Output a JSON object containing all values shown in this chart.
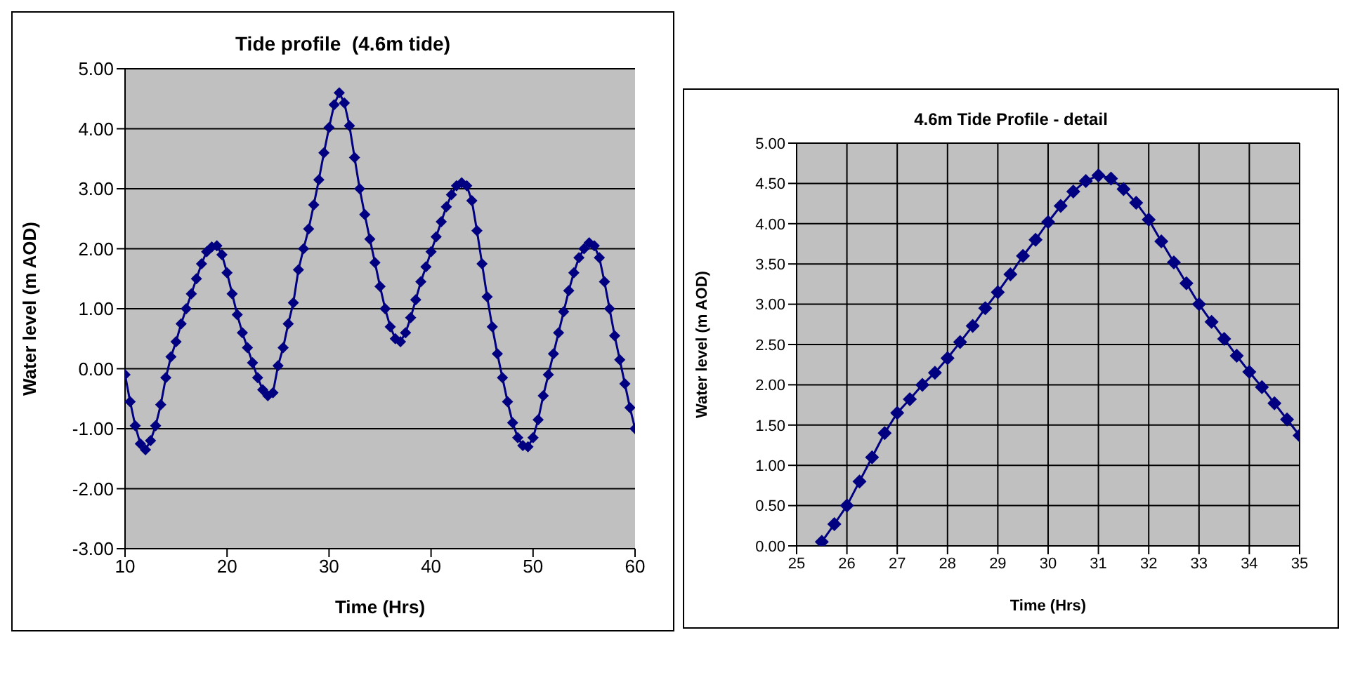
{
  "chart_data": [
    {
      "type": "line",
      "title": "Tide profile  (4.6m tide)",
      "xlabel": "Time (Hrs)",
      "ylabel": "Water level (m AOD)",
      "xlim": [
        10,
        60
      ],
      "xticks": [
        10,
        20,
        30,
        40,
        50,
        60
      ],
      "ylim": [
        -3,
        5
      ],
      "yticks": [
        {
          "value": -3,
          "label": "-3.00"
        },
        {
          "value": -2,
          "label": "-2.00"
        },
        {
          "value": -1,
          "label": "-1.00"
        },
        {
          "value": 0,
          "label": "0.00"
        },
        {
          "value": 1,
          "label": "1.00"
        },
        {
          "value": 2,
          "label": "2.00"
        },
        {
          "value": 3,
          "label": "3.00"
        },
        {
          "value": 4,
          "label": "4.00"
        },
        {
          "value": 5,
          "label": "5.00"
        }
      ],
      "grid": "y",
      "marker": "diamond",
      "x": [
        10,
        10.5,
        11,
        11.5,
        12,
        12.5,
        13,
        13.5,
        14,
        14.5,
        15,
        15.5,
        16,
        16.5,
        17,
        17.5,
        18,
        18.5,
        19,
        19.5,
        20,
        20.5,
        21,
        21.5,
        22,
        22.5,
        23,
        23.5,
        24,
        24.5,
        25,
        25.5,
        26,
        26.5,
        27,
        27.5,
        28,
        28.5,
        29,
        29.5,
        30,
        30.5,
        31,
        31.5,
        32,
        32.5,
        33,
        33.5,
        34,
        34.5,
        35,
        35.5,
        36,
        36.5,
        37,
        37.5,
        38,
        38.5,
        39,
        39.5,
        40,
        40.5,
        41,
        41.5,
        42,
        42.5,
        43,
        43.5,
        44,
        44.5,
        45,
        45.5,
        46,
        46.5,
        47,
        47.5,
        48,
        48.5,
        49,
        49.5,
        50,
        50.5,
        51,
        51.5,
        52,
        52.5,
        53,
        53.5,
        54,
        54.5,
        55,
        55.5,
        56,
        56.5,
        57,
        57.5,
        58,
        58.5,
        59,
        59.5,
        60
      ],
      "series": [
        {
          "color": "#000080",
          "values": [
            -0.1,
            -0.55,
            -0.95,
            -1.25,
            -1.35,
            -1.2,
            -0.95,
            -0.6,
            -0.15,
            0.2,
            0.45,
            0.75,
            1.0,
            1.25,
            1.5,
            1.75,
            1.95,
            2.03,
            2.05,
            1.9,
            1.6,
            1.25,
            0.9,
            0.6,
            0.35,
            0.1,
            -0.15,
            -0.35,
            -0.45,
            -0.4,
            0.05,
            0.35,
            0.75,
            1.1,
            1.65,
            2.0,
            2.33,
            2.73,
            3.15,
            3.6,
            4.02,
            4.4,
            4.6,
            4.43,
            4.05,
            3.52,
            3.0,
            2.57,
            2.16,
            1.77,
            1.37,
            1.0,
            0.7,
            0.5,
            0.45,
            0.6,
            0.85,
            1.15,
            1.45,
            1.7,
            1.95,
            2.2,
            2.45,
            2.7,
            2.9,
            3.05,
            3.1,
            3.05,
            2.8,
            2.3,
            1.75,
            1.2,
            0.7,
            0.25,
            -0.15,
            -0.55,
            -0.9,
            -1.15,
            -1.28,
            -1.3,
            -1.15,
            -0.85,
            -0.45,
            -0.1,
            0.25,
            0.6,
            0.95,
            1.3,
            1.6,
            1.85,
            2.0,
            2.1,
            2.05,
            1.85,
            1.45,
            1.0,
            0.55,
            0.15,
            -0.25,
            -0.65,
            -1.0
          ]
        }
      ]
    },
    {
      "type": "line",
      "title": "4.6m Tide Profile - detail",
      "xlabel": "Time (Hrs)",
      "ylabel": "Water level (m AOD)",
      "xlim": [
        25,
        35
      ],
      "xticks": [
        25,
        26,
        27,
        28,
        29,
        30,
        31,
        32,
        33,
        34,
        35
      ],
      "ylim": [
        0,
        5
      ],
      "yticks": [
        {
          "value": 0,
          "label": "0.00"
        },
        {
          "value": 0.5,
          "label": "0.50"
        },
        {
          "value": 1,
          "label": "1.00"
        },
        {
          "value": 1.5,
          "label": "1.50"
        },
        {
          "value": 2,
          "label": "2.00"
        },
        {
          "value": 2.5,
          "label": "2.50"
        },
        {
          "value": 3,
          "label": "3.00"
        },
        {
          "value": 3.5,
          "label": "3.50"
        },
        {
          "value": 4,
          "label": "4.00"
        },
        {
          "value": 4.5,
          "label": "4.50"
        },
        {
          "value": 5,
          "label": "5.00"
        }
      ],
      "grid": true,
      "marker": "diamond",
      "x": [
        25.5,
        25.75,
        26,
        26.25,
        26.5,
        26.75,
        27,
        27.25,
        27.5,
        27.75,
        28,
        28.25,
        28.5,
        28.75,
        29,
        29.25,
        29.5,
        29.75,
        30,
        30.25,
        30.5,
        30.75,
        31,
        31.25,
        31.5,
        31.75,
        32,
        32.25,
        32.5,
        32.75,
        33,
        33.25,
        33.5,
        33.75,
        34,
        34.25,
        34.5,
        34.75,
        35
      ],
      "series": [
        {
          "color": "#000080",
          "values": [
            0.05,
            0.27,
            0.5,
            0.8,
            1.1,
            1.4,
            1.65,
            1.82,
            2.0,
            2.15,
            2.33,
            2.53,
            2.73,
            2.95,
            3.15,
            3.37,
            3.6,
            3.8,
            4.02,
            4.22,
            4.4,
            4.53,
            4.6,
            4.56,
            4.43,
            4.26,
            4.05,
            3.78,
            3.52,
            3.26,
            3.0,
            2.78,
            2.57,
            2.36,
            2.16,
            1.97,
            1.77,
            1.57,
            1.37
          ]
        }
      ]
    }
  ]
}
